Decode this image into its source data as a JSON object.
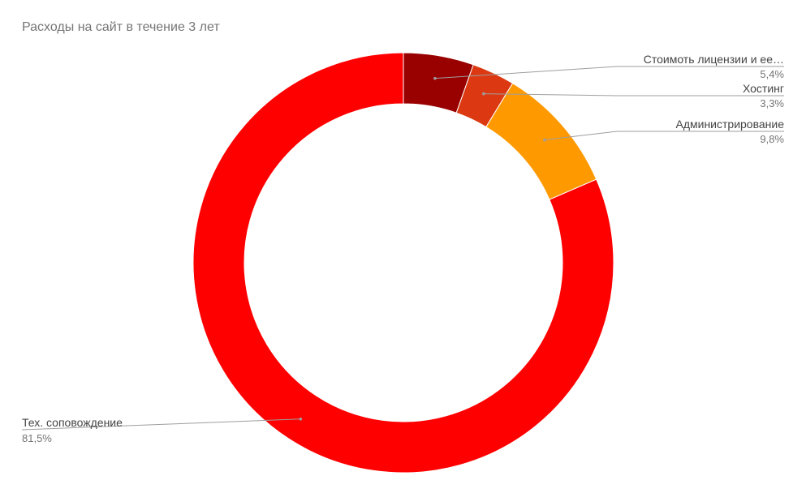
{
  "chart_data": {
    "type": "pie",
    "donut": true,
    "title": "Расходы на сайт в течение 3 лет",
    "slices": [
      {
        "label": "Стоимоть лицензии и ее…",
        "value": 5.4,
        "pct_label": "5,4%",
        "color": "#990000"
      },
      {
        "label": "Хостинг",
        "value": 3.3,
        "pct_label": "3,3%",
        "color": "#dc3912"
      },
      {
        "label": "Администрирование",
        "value": 9.8,
        "pct_label": "9,8%",
        "color": "#ff9900"
      },
      {
        "label": "Тех. соповождение",
        "value": 81.5,
        "pct_label": "81,5%",
        "color": "#ff0000"
      }
    ],
    "legend": "labeled slices"
  }
}
